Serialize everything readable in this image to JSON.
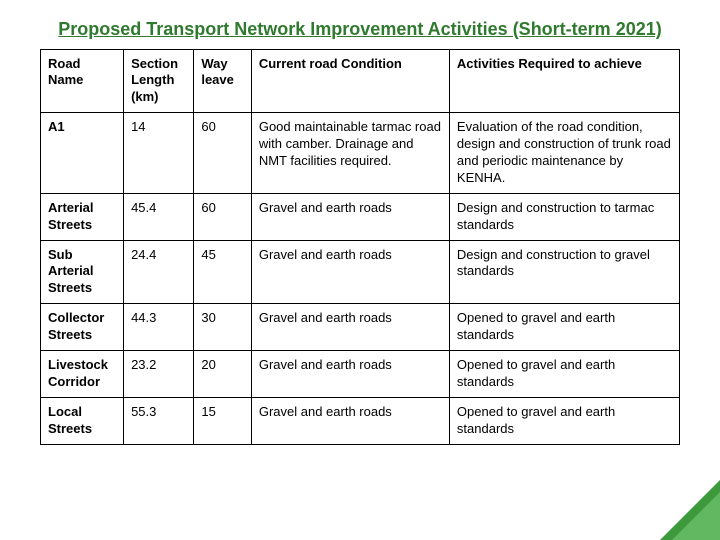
{
  "title": {
    "text": "Proposed Transport Network Improvement Activities (Short-term 2021)",
    "color": "#2f7a2f",
    "fontsize": 18
  },
  "table": {
    "fontsize": 13,
    "header_fontsize": 13,
    "col_widths": [
      "13%",
      "11%",
      "9%",
      "31%",
      "36%"
    ],
    "columns": [
      "Road Name",
      "Section Length (km)",
      "Way leave",
      "Current road Condition",
      "Activities Required to achieve"
    ],
    "rows": [
      {
        "name": "A1",
        "length": "14",
        "wayleave": "60",
        "condition": " Good maintainable tarmac road with camber. Drainage and NMT facilities required.",
        "activities": "Evaluation of the road condition, design and construction of trunk road and periodic maintenance by KENHA."
      },
      {
        "name": "Arterial Streets",
        "length": "45.4",
        "wayleave": "60",
        "condition": "Gravel and earth roads",
        "activities": "Design and construction to tarmac standards"
      },
      {
        "name": "Sub Arterial Streets",
        "length": "24.4",
        "wayleave": "45",
        "condition": "Gravel and earth roads",
        "activities": "Design and construction to gravel  standards"
      },
      {
        "name": "Collector Streets",
        "length": "44.3",
        "wayleave": "30",
        "condition": "Gravel and earth roads",
        "activities": "Opened to gravel and earth standards"
      },
      {
        "name": "Livestock Corridor",
        "length": "23.2",
        "wayleave": "20",
        "condition": "Gravel and earth roads",
        "activities": "Opened to gravel and earth standards"
      },
      {
        "name": "Local Streets",
        "length": "55.3",
        "wayleave": "15",
        "condition": "Gravel and earth roads",
        "activities": "Opened to gravel and earth standards"
      }
    ]
  },
  "corner": {
    "outer_color": "#3c9a3c",
    "inner_color": "#61b861"
  }
}
